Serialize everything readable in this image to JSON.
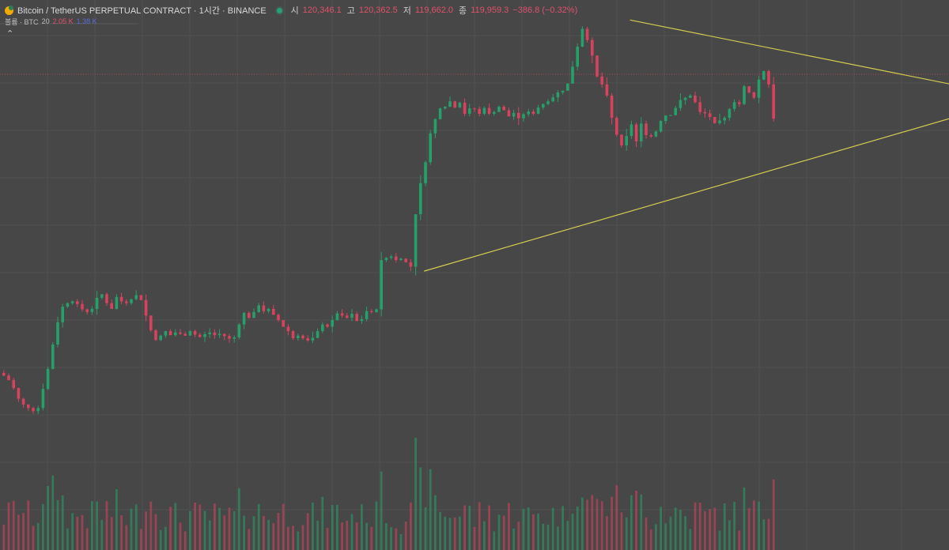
{
  "legend": {
    "symbol_title": "Bitcoin / TetherUS PERPETUAL CONTRACT · 1시간 · BINANCE",
    "open_label": "시",
    "open_value": "120,346.1",
    "high_label": "고",
    "high_value": "120,362.5",
    "low_label": "저",
    "low_value": "119,662.0",
    "close_label": "종",
    "close_value": "119,959.3",
    "change_value": "−386.8 (−0.32%)"
  },
  "volume_legend": {
    "label": "볼륨 · BTC",
    "length": "20",
    "value_1": "2.05 K",
    "value_2": "1.38 K"
  },
  "collapse_icon": "⌃",
  "colors": {
    "background": "#474747",
    "up": "#26a06a",
    "down": "#d9425f",
    "trendline": "#d4cc50",
    "price_line": "#c2485a",
    "grid": "#515151"
  },
  "chart_data": {
    "type": "candlestick",
    "symbol": "BTCUSDT.P",
    "interval": "1시간",
    "exchange": "BINANCE",
    "close": [
      115150,
      115050,
      114870,
      114630,
      114500,
      114420,
      114350,
      114420,
      114850,
      115300,
      115850,
      116350,
      116700,
      116780,
      116820,
      116760,
      116640,
      116580,
      116650,
      116900,
      116980,
      116780,
      116650,
      116920,
      116820,
      116780,
      116870,
      116960,
      116850,
      116500,
      116170,
      115950,
      116050,
      116150,
      116060,
      116120,
      116090,
      116050,
      116150,
      116070,
      116020,
      116080,
      116120,
      116060,
      116090,
      116040,
      115980,
      116010,
      116300,
      116560,
      116450,
      116580,
      116730,
      116600,
      116650,
      116520,
      116400,
      116250,
      116150,
      115990,
      116050,
      115990,
      115940,
      116000,
      116150,
      116300,
      116250,
      116400,
      116550,
      116500,
      116450,
      116540,
      116380,
      116420,
      116600,
      116580,
      116640,
      117750,
      117800,
      117830,
      117750,
      117780,
      117700,
      117600,
      118780,
      119480,
      119950,
      120600,
      120920,
      121160,
      121200,
      121320,
      121180,
      121290,
      121040,
      121160,
      121150,
      121040,
      121170,
      121040,
      121080,
      121200,
      121120,
      120980,
      121060,
      120940,
      121030,
      121090,
      121040,
      121180,
      121260,
      121320,
      121410,
      121520,
      121560,
      121720,
      122100,
      122550,
      122950,
      122700,
      122350,
      121880,
      121700,
      121450,
      120950,
      120570,
      120330,
      120540,
      120800,
      120420,
      120820,
      120560,
      120530,
      120640,
      120880,
      121000,
      121010,
      121170,
      121350,
      121400,
      121450,
      121300,
      121080,
      121050,
      120970,
      120830,
      120890,
      120950,
      121150,
      121300,
      121260,
      121660,
      121520,
      121400,
      121810,
      122000,
      121700,
      120930
    ],
    "ylim": [
      114000,
      123600
    ],
    "trendlines": [
      {
        "from": [
          86,
          117500
        ],
        "to": [
          239,
          122400
        ]
      },
      {
        "from": [
          128,
          123150
        ],
        "to": [
          239,
          120700
        ]
      }
    ],
    "current_price_line": 121930,
    "volume_max": "2.05 K"
  }
}
